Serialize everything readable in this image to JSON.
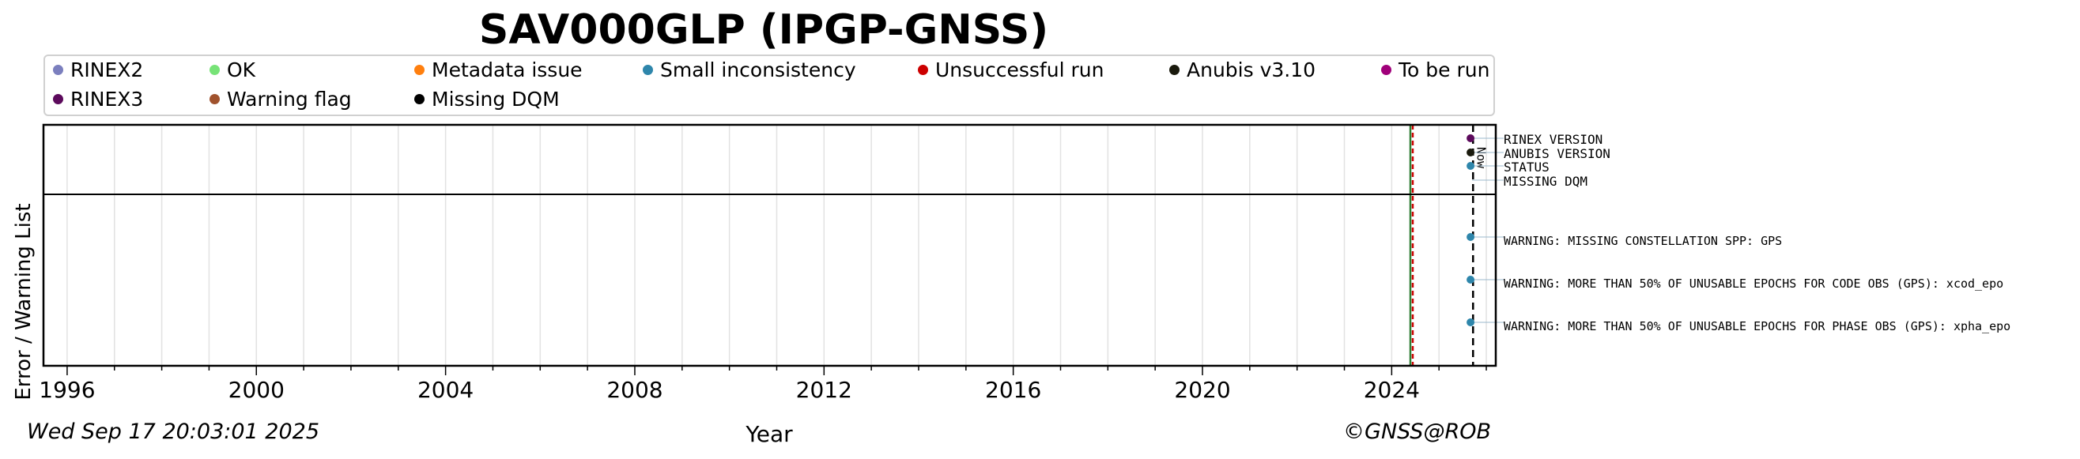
{
  "title": "SAV000GLP (IPGP-GNSS)",
  "legend": [
    {
      "label": "RINEX2",
      "color": "#7b7fbe"
    },
    {
      "label": "OK",
      "color": "#77e377"
    },
    {
      "label": "Metadata issue",
      "color": "#ff7f0e"
    },
    {
      "label": "Small inconsistency",
      "color": "#2e86ab"
    },
    {
      "label": "Unsuccessful run",
      "color": "#cc0000"
    },
    {
      "label": "Anubis v3.10",
      "color": "#1a1a0d"
    },
    {
      "label": "To be run",
      "color": "#a0007a"
    },
    {
      "label": "RINEX3",
      "color": "#5c0a5c"
    },
    {
      "label": "Warning flag",
      "color": "#a0522d"
    },
    {
      "label": "Missing DQM",
      "color": "#000000"
    }
  ],
  "footer": {
    "timestamp": "Wed Sep 17 20:03:01 2025",
    "copyright": "©GNSS@ROB"
  },
  "chart_data": {
    "type": "scatter",
    "title": "SAV000GLP (IPGP-GNSS)",
    "xlabel": "Year",
    "ylabel": "Error / Warning List",
    "xlim": [
      1995.5,
      2026.2
    ],
    "x_ticks": [
      1996,
      2000,
      2004,
      2008,
      2012,
      2016,
      2020,
      2024
    ],
    "x_ticklabels": [
      "1996",
      "2000",
      "2004",
      "2008",
      "2012",
      "2016",
      "2020",
      "2024"
    ],
    "grid": true,
    "status_rows": [
      {
        "label": "RINEX VERSION",
        "x": 2025.7,
        "color": "#5c0a5c"
      },
      {
        "label": "ANUBIS VERSION",
        "x": 2025.7,
        "color": "#1a1a0d"
      },
      {
        "label": "STATUS",
        "x": 2025.7,
        "color": "#2e86ab"
      },
      {
        "label": "MISSING DQM",
        "x": null,
        "color": "#000000"
      }
    ],
    "warning_rows": [
      {
        "label": "WARNING: MISSING CONSTELLATION SPP: GPS",
        "x": 2025.7,
        "color": "#2e86ab"
      },
      {
        "label": "WARNING: MORE THAN 50% OF UNUSABLE EPOCHS FOR CODE OBS (GPS): xcod_epo",
        "x": 2025.7,
        "color": "#2e86ab"
      },
      {
        "label": "WARNING: MORE THAN 50% OF UNUSABLE EPOCHS FOR PHASE OBS (GPS): xpha_epo",
        "x": 2025.7,
        "color": "#2e86ab"
      }
    ],
    "vertical_markers": [
      {
        "x": 2024.42,
        "style": "solid",
        "colors": [
          "#2e7d32",
          "#cc0000"
        ]
      },
      {
        "x": 2025.72,
        "style": "dashed",
        "color": "#000000",
        "label": "Now"
      }
    ]
  }
}
